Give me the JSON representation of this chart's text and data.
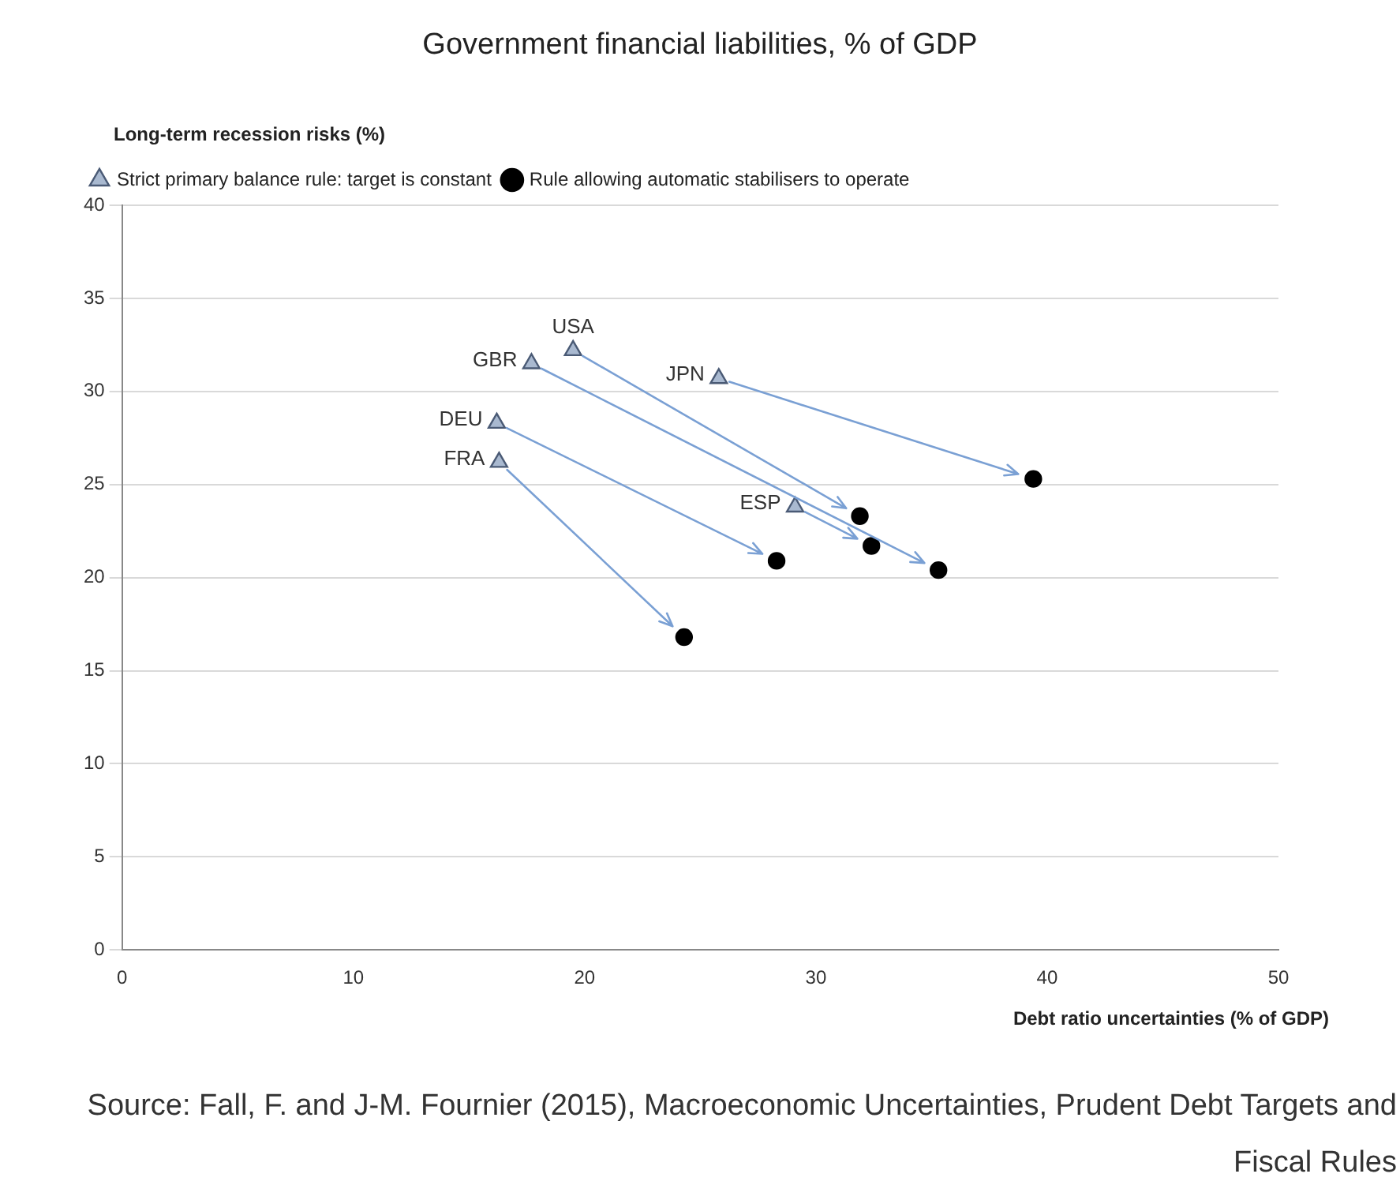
{
  "chart_data": {
    "type": "scatter",
    "title": "Government financial liabilities, % of GDP",
    "xlabel": "Debt ratio uncertainties (% of GDP)",
    "ylabel": "Long-term recession risks (%)",
    "series": [
      {
        "name": "Strict primary balance rule: target is constant",
        "color": "#a9b9d0",
        "marker": "triangle",
        "x": [
          19.5,
          17.7,
          25.8,
          16.2,
          16.3,
          29.1
        ],
        "values": [
          32.2,
          31.5,
          30.7,
          28.3,
          26.2,
          23.8
        ]
      },
      {
        "name": "Rule allowing automatic stabilisers to operate",
        "color": "#000000",
        "marker": "circle",
        "x": [
          31.9,
          35.3,
          39.4,
          28.3,
          24.3,
          32.4
        ],
        "values": [
          23.3,
          20.4,
          25.3,
          20.9,
          16.8,
          21.7
        ]
      }
    ],
    "annotations": [
      {
        "text": "USA",
        "x": 19.5,
        "y": 32.2
      },
      {
        "text": "GBR",
        "x": 17.7,
        "y": 31.5
      },
      {
        "text": "JPN",
        "x": 25.8,
        "y": 30.7
      },
      {
        "text": "DEU",
        "x": 16.2,
        "y": 28.3
      },
      {
        "text": "FRA",
        "x": 16.3,
        "y": 26.2
      },
      {
        "text": "ESP",
        "x": 29.1,
        "y": 23.8
      },
      "Source: Fall, F. and J-M. Fournier (2015), Macroeconomic Uncertainties, Prudent Debt Targets and Fiscal Rules"
    ],
    "xlim": [
      0,
      50
    ],
    "xticks": [
      0,
      10,
      20,
      30,
      40,
      50
    ],
    "ylim": [
      0,
      40
    ],
    "yticks": [
      0,
      5,
      10,
      15,
      20,
      25,
      30,
      35,
      40
    ],
    "grid": "y",
    "legend": "top left"
  }
}
